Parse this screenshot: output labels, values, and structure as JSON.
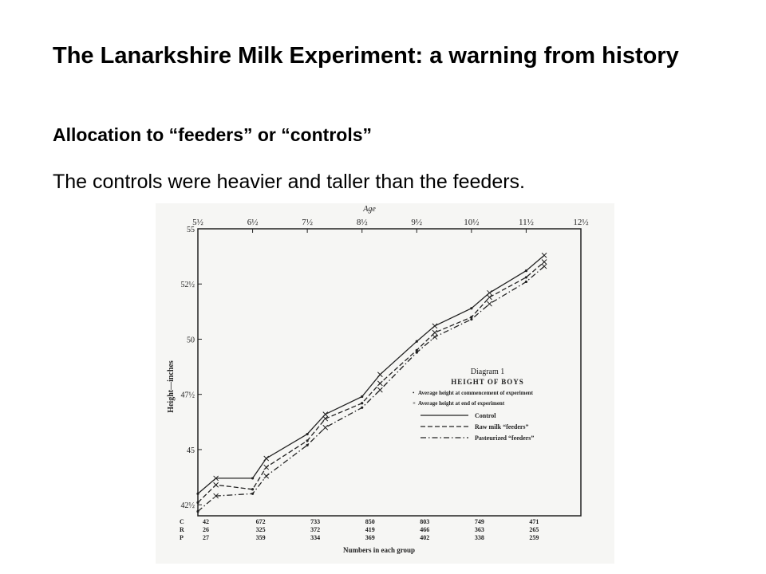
{
  "slide": {
    "title": "The Lanarkshire Milk Experiment: a warning from history",
    "subtitle": "Allocation to “feeders” or “controls”",
    "body": "The controls were heavier and taller than the feeders."
  },
  "colors": {
    "background": "#ffffff",
    "text": "#000000",
    "figure_ink": "#222222"
  },
  "figure": {
    "top_axis_label": "Age",
    "y_axis_label": "Height—inches",
    "bottom_axis_label": "Numbers in each group",
    "diagram_title": "Diagram 1",
    "diagram_subtitle": "HEIGHT OF BOYS",
    "marker_notes": [
      {
        "symbol": "•",
        "text": "Average height at commencement of experiment"
      },
      {
        "symbol": "×",
        "text": "Average height at end of experiment"
      }
    ],
    "count_row_labels": [
      "C",
      "R",
      "P"
    ],
    "counts": [
      [
        "42",
        "26",
        "27"
      ],
      [
        "672",
        "325",
        "359"
      ],
      [
        "733",
        "372",
        "334"
      ],
      [
        "850",
        "419",
        "369"
      ],
      [
        "803",
        "466",
        "402"
      ],
      [
        "749",
        "363",
        "338"
      ],
      [
        "471",
        "265",
        "259"
      ]
    ]
  },
  "chart_data": {
    "type": "line",
    "title": "Diagram 1",
    "subtitle": "HEIGHT OF BOYS",
    "xlabel": "Age",
    "ylabel": "Height—inches",
    "x_ticks": [
      "5½",
      "6½",
      "7½",
      "8½",
      "9½",
      "10½",
      "11½",
      "12½"
    ],
    "x_tick_values": [
      5.5,
      6.5,
      7.5,
      8.5,
      9.5,
      10.5,
      11.5,
      12.5
    ],
    "xlim": [
      5.5,
      12.5
    ],
    "y_ticks": [
      "55",
      "52½",
      "50",
      "47½",
      "45",
      "42½"
    ],
    "y_tick_values": [
      55,
      52.5,
      50,
      47.5,
      45,
      42.5
    ],
    "ylim": [
      42,
      55
    ],
    "grid": false,
    "legend_position": "right",
    "series": [
      {
        "name": "Control",
        "dash": "solid",
        "points": [
          [
            5.5,
            43.0
          ],
          [
            5.83,
            43.7
          ],
          [
            6.5,
            43.7
          ],
          [
            6.75,
            44.6
          ],
          [
            7.5,
            45.7
          ],
          [
            7.83,
            46.6
          ],
          [
            8.5,
            47.4
          ],
          [
            8.83,
            48.4
          ],
          [
            9.5,
            49.9
          ],
          [
            9.83,
            50.6
          ],
          [
            10.5,
            51.4
          ],
          [
            10.83,
            52.1
          ],
          [
            11.5,
            53.1
          ],
          [
            11.83,
            53.8
          ]
        ]
      },
      {
        "name": "Raw milk “feeders”",
        "dash": "dashed",
        "points": [
          [
            5.5,
            42.6
          ],
          [
            5.83,
            43.4
          ],
          [
            6.5,
            43.2
          ],
          [
            6.75,
            44.2
          ],
          [
            7.5,
            45.4
          ],
          [
            7.83,
            46.4
          ],
          [
            8.5,
            47.1
          ],
          [
            8.83,
            48.0
          ],
          [
            9.5,
            49.5
          ],
          [
            9.83,
            50.3
          ],
          [
            10.5,
            51.0
          ],
          [
            10.83,
            51.9
          ],
          [
            11.5,
            52.8
          ],
          [
            11.83,
            53.5
          ]
        ]
      },
      {
        "name": "Pasteurized “feeders”",
        "dash": "dash-dot",
        "points": [
          [
            5.5,
            42.2
          ],
          [
            5.83,
            42.9
          ],
          [
            6.5,
            43.0
          ],
          [
            6.75,
            43.8
          ],
          [
            7.5,
            45.2
          ],
          [
            7.83,
            46.0
          ],
          [
            8.5,
            46.9
          ],
          [
            8.83,
            47.7
          ],
          [
            9.5,
            49.4
          ],
          [
            9.83,
            50.1
          ],
          [
            10.5,
            50.9
          ],
          [
            10.83,
            51.6
          ],
          [
            11.5,
            52.6
          ],
          [
            11.83,
            53.3
          ]
        ]
      }
    ]
  }
}
